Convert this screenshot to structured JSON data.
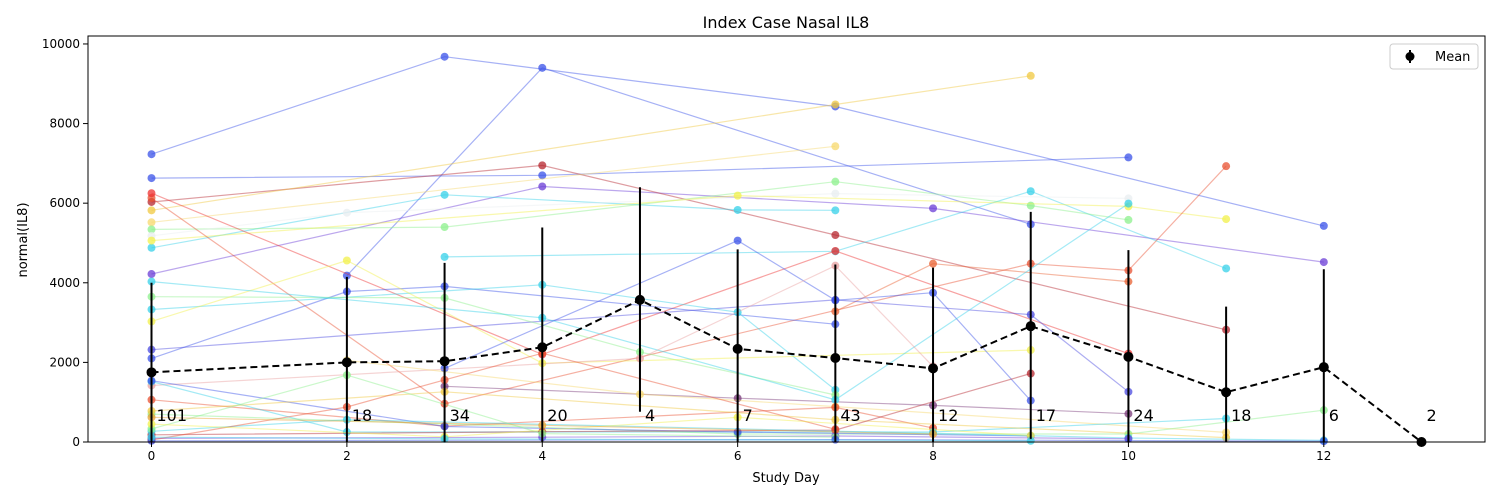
{
  "chart_data": {
    "type": "line",
    "title": "Index Case Nasal IL8",
    "xlabel": "Study Day",
    "ylabel": "normal(IL8)",
    "xlim": [
      -0.65,
      13.65
    ],
    "ylim": [
      0,
      10200
    ],
    "xticks": [
      0,
      2,
      4,
      6,
      8,
      10,
      12
    ],
    "yticks": [
      0,
      2000,
      4000,
      6000,
      8000,
      10000
    ],
    "grid": false,
    "legend": {
      "placement": "top-right",
      "entries": [
        "Mean"
      ]
    },
    "mean_series": {
      "name": "Mean",
      "color": "#000000",
      "x": [
        0,
        2,
        3,
        4,
        5,
        6,
        7,
        8,
        9,
        10,
        11,
        12,
        13
      ],
      "y": [
        1750,
        2000,
        2030,
        2380,
        3570,
        2340,
        2110,
        1850,
        2910,
        2140,
        1250,
        1880,
        0
      ],
      "err_low": [
        0,
        0,
        0,
        0,
        760,
        0,
        0,
        0,
        80,
        0,
        0,
        0,
        0
      ],
      "err_high": [
        4000,
        4150,
        4500,
        5390,
        6400,
        4840,
        4460,
        4380,
        5780,
        4820,
        3400,
        4340,
        0
      ]
    },
    "counts": {
      "x": [
        0,
        2,
        3,
        4,
        5,
        6,
        7,
        8,
        9,
        10,
        11,
        12,
        13
      ],
      "labels": [
        "101",
        "18",
        "34",
        "20",
        "4",
        "7",
        "43",
        "12",
        "17",
        "24",
        "18",
        "6",
        "2"
      ]
    },
    "subjects": [
      {
        "color": "#3a52e8",
        "x": [
          0,
          3,
          7,
          12
        ],
        "y": [
          7230,
          9680,
          8430,
          5430
        ]
      },
      {
        "color": "#3a52e8",
        "x": [
          0,
          4,
          10
        ],
        "y": [
          6630,
          6700,
          7150
        ]
      },
      {
        "color": "#3a52e8",
        "x": [
          2,
          4,
          9
        ],
        "y": [
          4180,
          9400,
          5470
        ]
      },
      {
        "color": "#6a3cd6",
        "x": [
          0,
          4,
          8,
          12
        ],
        "y": [
          4220,
          6420,
          5870,
          4520
        ]
      },
      {
        "color": "#b5262e",
        "x": [
          0,
          4,
          7,
          11
        ],
        "y": [
          6030,
          6950,
          5200,
          2820
        ]
      },
      {
        "color": "#f0c840",
        "x": [
          0,
          7,
          9
        ],
        "y": [
          5820,
          8480,
          9200
        ]
      },
      {
        "color": "#f7d86c",
        "x": [
          0,
          7
        ],
        "y": [
          5520,
          7430
        ]
      },
      {
        "color": "#36d0e8",
        "x": [
          0,
          3,
          6,
          7
        ],
        "y": [
          4880,
          6210,
          5830,
          5820
        ]
      },
      {
        "color": "#36d0e8",
        "x": [
          3,
          7,
          9,
          11
        ],
        "y": [
          4650,
          4790,
          6300,
          4360
        ]
      },
      {
        "color": "#8cf08c",
        "x": [
          0,
          3,
          7,
          9,
          10
        ],
        "y": [
          5340,
          5400,
          6540,
          5940,
          5580
        ]
      },
      {
        "color": "#e8edf0",
        "x": [
          0,
          2,
          7,
          10
        ],
        "y": [
          5180,
          5760,
          6240,
          6120
        ]
      },
      {
        "color": "#f2f04a",
        "x": [
          0,
          6,
          10,
          11
        ],
        "y": [
          5060,
          6190,
          5920,
          5600
        ]
      },
      {
        "color": "#e85030",
        "x": [
          0,
          3,
          9,
          10,
          11
        ],
        "y": [
          6130,
          960,
          4480,
          4310,
          6930
        ]
      },
      {
        "color": "#ee3030",
        "x": [
          0,
          4,
          7,
          10
        ],
        "y": [
          6250,
          2200,
          4800,
          2220
        ]
      },
      {
        "color": "#e86030",
        "x": [
          7,
          8,
          10
        ],
        "y": [
          3280,
          4480,
          4030
        ]
      },
      {
        "color": "#3a52e8",
        "x": [
          0,
          2,
          3,
          7
        ],
        "y": [
          2100,
          3780,
          3910,
          2960
        ]
      },
      {
        "color": "#4a4ae0",
        "x": [
          0,
          7,
          9,
          10
        ],
        "y": [
          2320,
          3570,
          3200,
          1260
        ]
      },
      {
        "color": "#36d0e8",
        "x": [
          0,
          4,
          6,
          7
        ],
        "y": [
          3330,
          3950,
          3260,
          1310
        ]
      },
      {
        "color": "#8cf08c",
        "x": [
          0,
          3,
          5,
          7
        ],
        "y": [
          3650,
          3620,
          2260,
          1180
        ]
      },
      {
        "color": "#f2f04a",
        "x": [
          0,
          2,
          4,
          9
        ],
        "y": [
          3030,
          4560,
          1980,
          2310
        ]
      },
      {
        "color": "#3a52e8",
        "x": [
          3,
          6,
          7,
          8,
          9
        ],
        "y": [
          1850,
          5060,
          3560,
          3750,
          1040
        ]
      },
      {
        "color": "#7a3a7a",
        "x": [
          3,
          6,
          8,
          10
        ],
        "y": [
          1400,
          1100,
          920,
          710
        ]
      },
      {
        "color": "#36d0e8",
        "x": [
          0,
          4,
          7,
          10
        ],
        "y": [
          4030,
          3120,
          1060,
          5990
        ]
      },
      {
        "color": "#e8a0a0",
        "x": [
          0,
          5,
          7,
          8
        ],
        "y": [
          1420,
          2100,
          4430,
          1900
        ]
      },
      {
        "color": "#f7d86c",
        "x": [
          2,
          5,
          7,
          11
        ],
        "y": [
          2050,
          1200,
          890,
          240
        ]
      },
      {
        "color": "#e85030",
        "x": [
          0,
          3,
          7,
          8
        ],
        "y": [
          1060,
          400,
          870,
          350
        ]
      },
      {
        "color": "#36d0e8",
        "x": [
          0,
          2,
          8,
          11
        ],
        "y": [
          1520,
          250,
          250,
          590
        ]
      },
      {
        "color": "#8cf08c",
        "x": [
          0,
          6,
          10,
          12
        ],
        "y": [
          700,
          200,
          200,
          800
        ]
      },
      {
        "color": "#3a52e8",
        "x": [
          0,
          3,
          6,
          9
        ],
        "y": [
          1540,
          390,
          250,
          150
        ]
      },
      {
        "color": "#f0c840",
        "x": [
          0,
          3,
          7,
          11
        ],
        "y": [
          780,
          1260,
          560,
          110
        ]
      },
      {
        "color": "#b5262e",
        "x": [
          0,
          4,
          7,
          9
        ],
        "y": [
          180,
          260,
          300,
          1720
        ]
      },
      {
        "color": "#36d0e8",
        "x": [
          0,
          2,
          10,
          12
        ],
        "y": [
          270,
          560,
          100,
          40
        ]
      },
      {
        "color": "#6a3cd6",
        "x": [
          0,
          4,
          7,
          10
        ],
        "y": [
          90,
          120,
          150,
          80
        ]
      },
      {
        "color": "#8cf08c",
        "x": [
          0,
          2,
          4,
          7
        ],
        "y": [
          330,
          1680,
          210,
          120
        ]
      },
      {
        "color": "#e85030",
        "x": [
          0,
          2,
          3,
          4,
          7
        ],
        "y": [
          50,
          880,
          1560,
          2230,
          320
        ]
      },
      {
        "color": "#f2f04a",
        "x": [
          0,
          3,
          6,
          9
        ],
        "y": [
          450,
          130,
          620,
          160
        ]
      },
      {
        "color": "#3a52e8",
        "x": [
          0,
          7,
          12
        ],
        "y": [
          30,
          60,
          20
        ]
      },
      {
        "color": "#e8a030",
        "x": [
          0,
          4,
          8
        ],
        "y": [
          620,
          420,
          200
        ]
      },
      {
        "color": "#36d0e8",
        "x": [
          0,
          3,
          9
        ],
        "y": [
          120,
          80,
          30
        ]
      }
    ]
  }
}
